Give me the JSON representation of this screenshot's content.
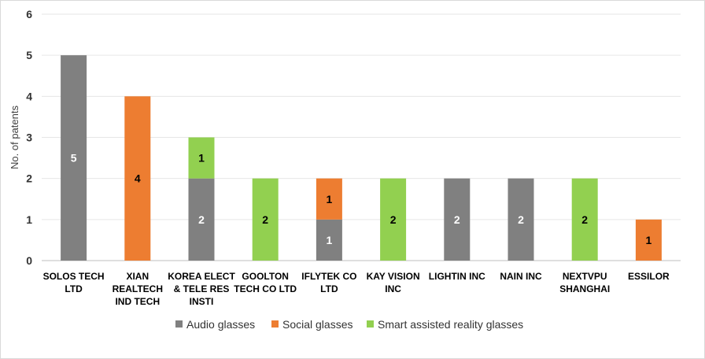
{
  "chart_data": {
    "type": "bar",
    "stacked": true,
    "ylabel": "No. of patents",
    "ylim": [
      0,
      6
    ],
    "yticks": [
      0,
      1,
      2,
      3,
      4,
      5,
      6
    ],
    "grid": true,
    "legend_position": "bottom",
    "categories": [
      [
        "SOLOS TECH",
        "LTD"
      ],
      [
        "XIAN",
        "REALTECH",
        "IND TECH"
      ],
      [
        "KOREA ELECT",
        "& TELE RES",
        "INSTI"
      ],
      [
        "GOOLTON",
        "TECH CO LTD"
      ],
      [
        "IFLYTEK CO",
        "LTD"
      ],
      [
        "KAY VISION",
        "INC"
      ],
      [
        "LIGHTIN INC"
      ],
      [
        "NAIN INC"
      ],
      [
        "NEXTVPU",
        "SHANGHAI"
      ],
      [
        "ESSILOR"
      ]
    ],
    "series": [
      {
        "name": "Audio glasses",
        "color": "#808080",
        "label_color": "#ffffff",
        "values": [
          5,
          0,
          2,
          0,
          1,
          0,
          2,
          2,
          0,
          0
        ]
      },
      {
        "name": "Social glasses",
        "color": "#ed7d31",
        "label_color": "#000000",
        "values": [
          0,
          4,
          0,
          0,
          1,
          0,
          0,
          0,
          0,
          1
        ]
      },
      {
        "name": "Smart assisted reality glasses",
        "color": "#92d050",
        "label_color": "#000000",
        "values": [
          0,
          0,
          1,
          2,
          0,
          2,
          0,
          0,
          2,
          0
        ]
      }
    ]
  }
}
